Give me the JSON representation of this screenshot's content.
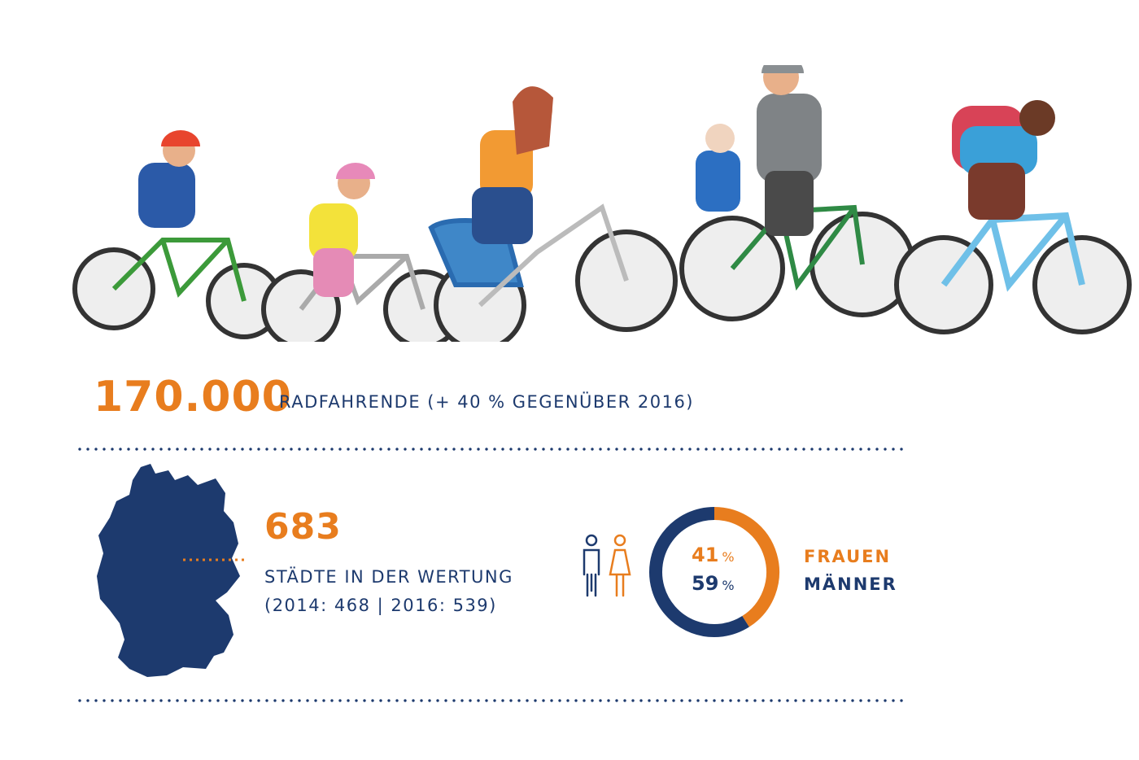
{
  "stats": {
    "cyclists_number": "170.000",
    "cyclists_label": "RADFAHRENDE (+ 40 % GEGENÜBER 2016)",
    "cities_number": "683",
    "cities_label": "STÄDTE IN DER WERTUNG",
    "cities_history": "(2014: 468 | 2016: 539)"
  },
  "chart_data": {
    "type": "pie",
    "categories": [
      "FRAUEN",
      "MÄNNER"
    ],
    "values": [
      41,
      59
    ],
    "value_labels": [
      "41",
      "59"
    ],
    "unit": "%",
    "colors": [
      "#e87d1e",
      "#1d3a6e"
    ],
    "title": "",
    "legend_placement": "right"
  },
  "colors": {
    "accent": "#e87d1e",
    "primary": "#1d3a6e"
  },
  "icons": {
    "map": "germany-map-icon",
    "people": "man-woman-icon"
  }
}
